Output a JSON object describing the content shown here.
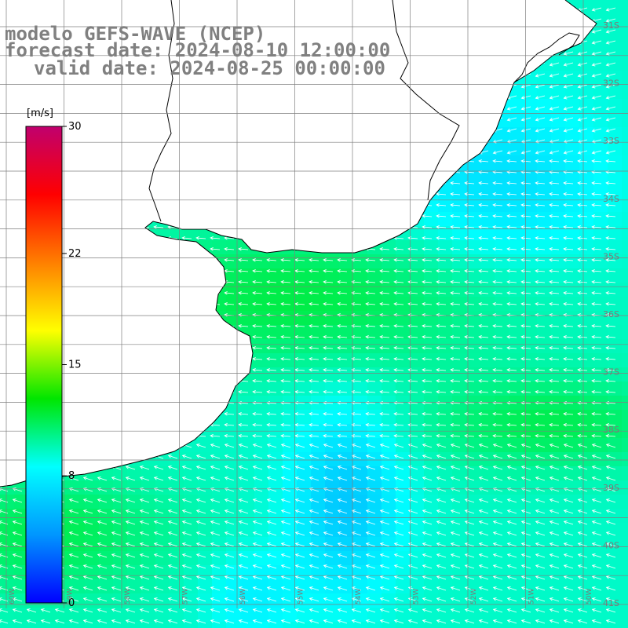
{
  "title": {
    "line1": "modelo GEFS-WAVE (NCEP)",
    "line2": "forecast date: 2024-08-10 12:00:00",
    "line3": "valid date: 2024-08-25 00:00:00"
  },
  "colorbar": {
    "unit": "[m/s]",
    "min": 0,
    "max": 30,
    "ticks": [
      {
        "value": 30,
        "label": "30"
      },
      {
        "value": 22,
        "label": "22"
      },
      {
        "value": 15,
        "label": "15"
      },
      {
        "value": 8,
        "label": "8"
      },
      {
        "value": 0,
        "label": "0"
      }
    ],
    "colors": [
      "#0000ff",
      "#0096ff",
      "#00ffff",
      "#00e600",
      "#ffff00",
      "#ff7f00",
      "#ff0000",
      "#c0006e"
    ]
  },
  "map": {
    "land_color": "#ffffff",
    "coast_color": "#000000",
    "grid_color": "#7f7f7f",
    "arrow_color": "#ffffff",
    "lat_labels": [
      "31S",
      "32S",
      "33S",
      "34S",
      "35S",
      "36S",
      "37S",
      "38S",
      "39S",
      "40S",
      "41S"
    ],
    "lon_labels": [
      "60W",
      "59W",
      "58W",
      "57W",
      "56W",
      "55W",
      "54W",
      "53W",
      "52W",
      "51W",
      "50W"
    ],
    "wind_direction": "from east"
  }
}
